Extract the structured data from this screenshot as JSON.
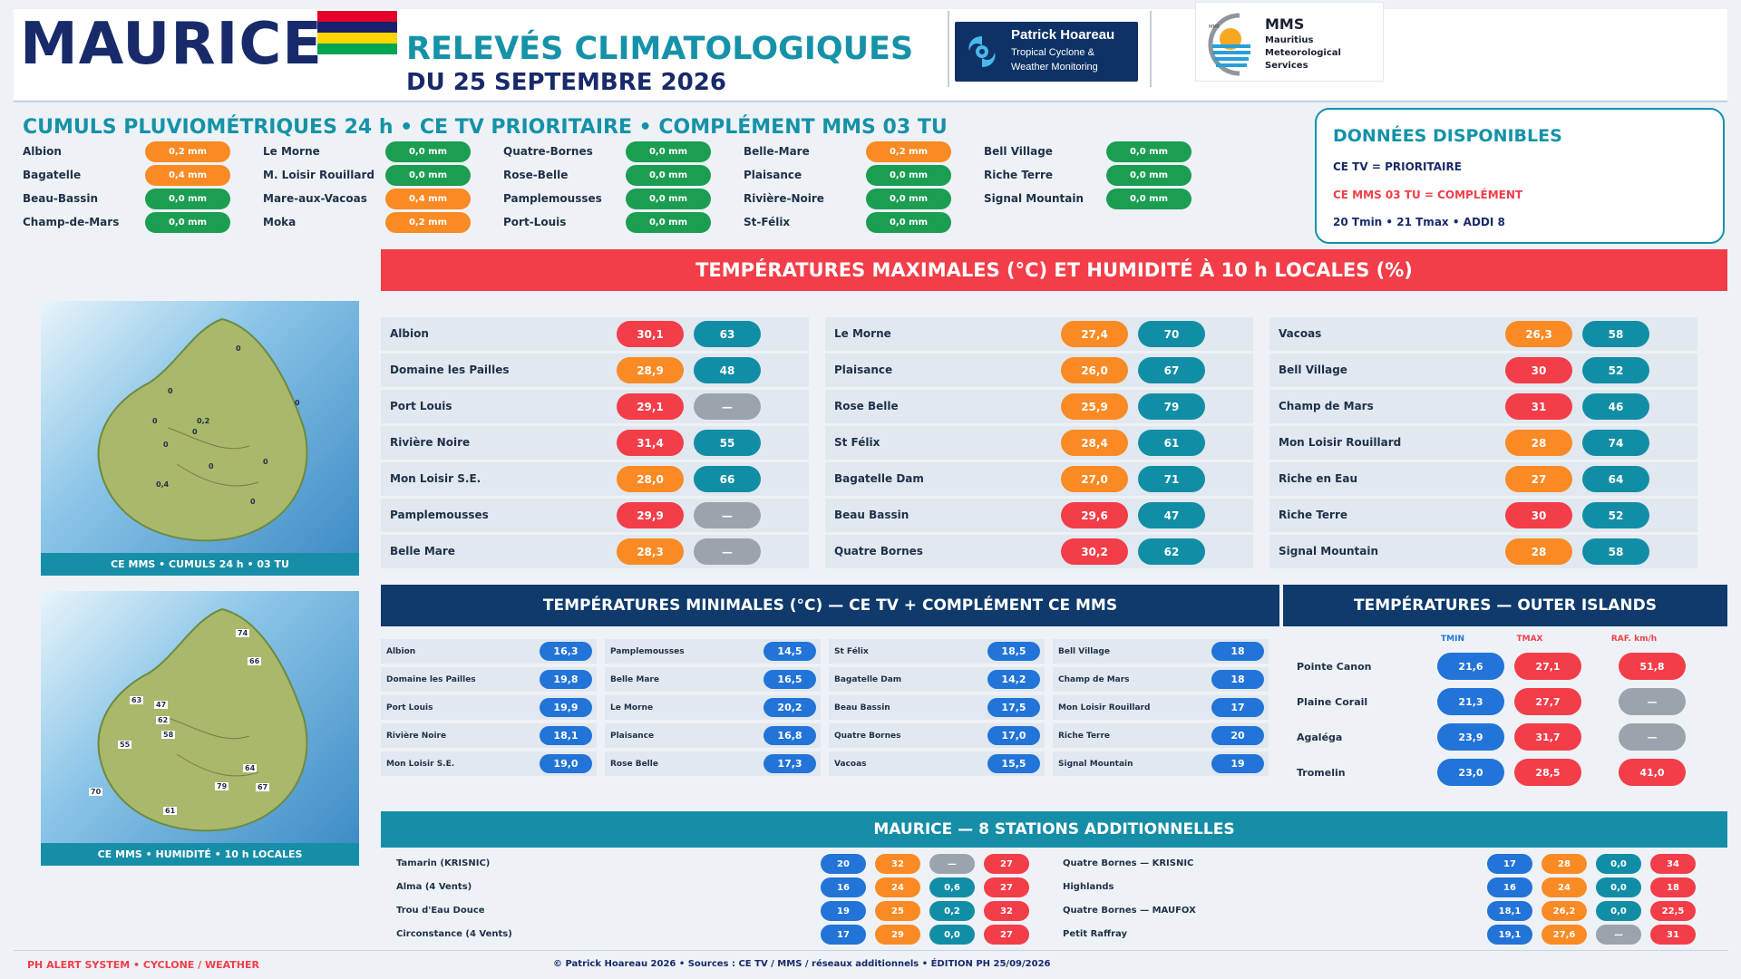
{
  "header": {
    "country": "MAURICE",
    "title_line1": "RELEVÉS CLIMATOLOGIQUES",
    "title_line2": "DU 25 SEPTEMBRE 2026",
    "ph_logo": {
      "name": "Patrick Hoareau",
      "line1": "Tropical Cyclone &",
      "line2": "Weather Monitoring"
    },
    "mms_logo": {
      "abbr": "MMS",
      "line1": "Mauritius",
      "line2": "Meteorological",
      "line3": "Services",
      "tiny": "MMS"
    }
  },
  "rain": {
    "title": "CUMULS PLUVIOMÉTRIQUES 24 h • CE TV PRIORITAIRE • COMPLÉMENT MMS 03 TU",
    "columns": [
      [
        {
          "name": "Albion",
          "value": "0,2 mm",
          "color": "org"
        },
        {
          "name": "Bagatelle",
          "value": "0,4 mm",
          "color": "org"
        },
        {
          "name": "Beau-Bassin",
          "value": "0,0 mm",
          "color": "grn"
        },
        {
          "name": "Champ-de-Mars",
          "value": "0,0 mm",
          "color": "grn"
        }
      ],
      [
        {
          "name": "Le Morne",
          "value": "0,0 mm",
          "color": "grn"
        },
        {
          "name": "M. Loisir Rouillard",
          "value": "0,0 mm",
          "color": "grn"
        },
        {
          "name": "Mare-aux-Vacoas",
          "value": "0,4 mm",
          "color": "org"
        },
        {
          "name": "Moka",
          "value": "0,2 mm",
          "color": "org"
        }
      ],
      [
        {
          "name": "Quatre-Bornes",
          "value": "0,0 mm",
          "color": "grn"
        },
        {
          "name": "Rose-Belle",
          "value": "0,0 mm",
          "color": "grn"
        },
        {
          "name": "Pamplemousses",
          "value": "0,0 mm",
          "color": "grn"
        },
        {
          "name": "Port-Louis",
          "value": "0,0 mm",
          "color": "grn"
        }
      ],
      [
        {
          "name": "Belle-Mare",
          "value": "0,2 mm",
          "color": "org"
        },
        {
          "name": "Plaisance",
          "value": "0,0 mm",
          "color": "grn"
        },
        {
          "name": "Rivière-Noire",
          "value": "0,0 mm",
          "color": "grn"
        },
        {
          "name": "St-Félix",
          "value": "0,0 mm",
          "color": "grn"
        }
      ],
      [
        {
          "name": "Bell Village",
          "value": "0,0 mm",
          "color": "grn"
        },
        {
          "name": "Riche Terre",
          "value": "0,0 mm",
          "color": "grn"
        },
        {
          "name": "Signal Mountain",
          "value": "0,0 mm",
          "color": "grn"
        }
      ]
    ]
  },
  "dispo": {
    "title": "DONNÉES DISPONIBLES",
    "line1": "CE TV = PRIORITAIRE",
    "line2": "CE MMS 03 TU = COMPLÉMENT",
    "line3": "20 Tmin • 21 Tmax • ADDI 8"
  },
  "maps": {
    "caption1": "CE MMS • CUMULS 24 h • 03 TU",
    "caption2": "CE MMS • HUMIDITÉ • 10 h LOCALES",
    "rain_labels": [
      "0",
      "0",
      "0",
      "0,2",
      "0",
      "0",
      "0,4",
      "0",
      "0",
      "0",
      "0"
    ],
    "hum_labels": [
      "74",
      "66",
      "63",
      "47",
      "62",
      "58",
      "55",
      "64",
      "79",
      "67",
      "70",
      "61"
    ]
  },
  "tmax": {
    "title": "TEMPÉRATURES MAXIMALES (°C) ET HUMIDITÉ À 10 h LOCALES (%)",
    "columns": [
      [
        {
          "name": "Albion",
          "t": "30,1",
          "tc": "red",
          "h": "63",
          "hc": "tea"
        },
        {
          "name": "Domaine les Pailles",
          "t": "28,9",
          "tc": "org",
          "h": "48",
          "hc": "tea"
        },
        {
          "name": "Port Louis",
          "t": "29,1",
          "tc": "red",
          "h": "—",
          "hc": "gry"
        },
        {
          "name": "Rivière Noire",
          "t": "31,4",
          "tc": "red",
          "h": "55",
          "hc": "tea"
        },
        {
          "name": "Mon Loisir S.E.",
          "t": "28,0",
          "tc": "org",
          "h": "66",
          "hc": "tea"
        },
        {
          "name": "Pamplemousses",
          "t": "29,9",
          "tc": "red",
          "h": "—",
          "hc": "gry"
        },
        {
          "name": "Belle Mare",
          "t": "28,3",
          "tc": "org",
          "h": "—",
          "hc": "gry"
        }
      ],
      [
        {
          "name": "Le Morne",
          "t": "27,4",
          "tc": "org",
          "h": "70",
          "hc": "tea"
        },
        {
          "name": "Plaisance",
          "t": "26,0",
          "tc": "org",
          "h": "67",
          "hc": "tea"
        },
        {
          "name": "Rose Belle",
          "t": "25,9",
          "tc": "org",
          "h": "79",
          "hc": "tea"
        },
        {
          "name": "St Félix",
          "t": "28,4",
          "tc": "org",
          "h": "61",
          "hc": "tea"
        },
        {
          "name": "Bagatelle Dam",
          "t": "27,0",
          "tc": "org",
          "h": "71",
          "hc": "tea"
        },
        {
          "name": "Beau Bassin",
          "t": "29,6",
          "tc": "red",
          "h": "47",
          "hc": "tea"
        },
        {
          "name": "Quatre Bornes",
          "t": "30,2",
          "tc": "red",
          "h": "62",
          "hc": "tea"
        }
      ],
      [
        {
          "name": "Vacoas",
          "t": "26,3",
          "tc": "org",
          "h": "58",
          "hc": "tea"
        },
        {
          "name": "Bell Village",
          "t": "30",
          "tc": "red",
          "h": "52",
          "hc": "tea"
        },
        {
          "name": "Champ de Mars",
          "t": "31",
          "tc": "red",
          "h": "46",
          "hc": "tea"
        },
        {
          "name": "Mon Loisir Rouillard",
          "t": "28",
          "tc": "org",
          "h": "74",
          "hc": "tea"
        },
        {
          "name": "Riche en Eau",
          "t": "27",
          "tc": "org",
          "h": "64",
          "hc": "tea"
        },
        {
          "name": "Riche Terre",
          "t": "30",
          "tc": "red",
          "h": "52",
          "hc": "tea"
        },
        {
          "name": "Signal Mountain",
          "t": "28",
          "tc": "org",
          "h": "58",
          "hc": "tea"
        }
      ]
    ]
  },
  "tmin": {
    "title": "TEMPÉRATURES MINIMALES (°C) — CE TV + COMPLÉMENT CE MMS",
    "columns": [
      [
        {
          "name": "Albion",
          "v": "16,3"
        },
        {
          "name": "Domaine les Pailles",
          "v": "19,8"
        },
        {
          "name": "Port Louis",
          "v": "19,9"
        },
        {
          "name": "Rivière Noire",
          "v": "18,1"
        },
        {
          "name": "Mon Loisir S.E.",
          "v": "19,0"
        }
      ],
      [
        {
          "name": "Pamplemousses",
          "v": "14,5"
        },
        {
          "name": "Belle Mare",
          "v": "16,5"
        },
        {
          "name": "Le Morne",
          "v": "20,2"
        },
        {
          "name": "Plaisance",
          "v": "16,8"
        },
        {
          "name": "Rose Belle",
          "v": "17,3"
        }
      ],
      [
        {
          "name": "St Félix",
          "v": "18,5"
        },
        {
          "name": "Bagatelle Dam",
          "v": "14,2"
        },
        {
          "name": "Beau Bassin",
          "v": "17,5"
        },
        {
          "name": "Quatre Bornes",
          "v": "17,0"
        },
        {
          "name": "Vacoas",
          "v": "15,5"
        }
      ],
      [
        {
          "name": "Bell Village",
          "v": "18"
        },
        {
          "name": "Champ de Mars",
          "v": "18"
        },
        {
          "name": "Mon Loisir Rouillard",
          "v": "17"
        },
        {
          "name": "Riche Terre",
          "v": "20"
        },
        {
          "name": "Signal Mountain",
          "v": "19"
        }
      ]
    ]
  },
  "outer": {
    "title": "TEMPÉRATURES — OUTER ISLANDS",
    "headers": [
      "TMIN",
      "TMAX",
      "RAF. km/h"
    ],
    "rows": [
      {
        "name": "Pointe Canon",
        "tmin": "21,6",
        "tmax": "27,1",
        "raf": "51,8",
        "rafc": "red"
      },
      {
        "name": "Plaine Corail",
        "tmin": "21,3",
        "tmax": "27,7",
        "raf": "—",
        "rafc": "gry"
      },
      {
        "name": "Agaléga",
        "tmin": "23,9",
        "tmax": "31,7",
        "raf": "—",
        "rafc": "gry"
      },
      {
        "name": "Tromelin",
        "tmin": "23,0",
        "tmax": "28,5",
        "raf": "41,0",
        "rafc": "red"
      }
    ]
  },
  "addi": {
    "title": "MAURICE — 8 STATIONS ADDITIONNELLES",
    "rows": [
      {
        "name": "Tamarin (KRISNIC)",
        "v": [
          [
            "20",
            "blu"
          ],
          [
            "32",
            "org"
          ],
          [
            "—",
            "gry"
          ],
          [
            "27",
            "red"
          ]
        ]
      },
      {
        "name": "Alma (4 Vents)",
        "v": [
          [
            "16",
            "blu"
          ],
          [
            "24",
            "org"
          ],
          [
            "0,6",
            "tea"
          ],
          [
            "27",
            "red"
          ]
        ]
      },
      {
        "name": "Trou d'Eau Douce",
        "v": [
          [
            "19",
            "blu"
          ],
          [
            "25",
            "org"
          ],
          [
            "0,2",
            "tea"
          ],
          [
            "32",
            "red"
          ]
        ]
      },
      {
        "name": "Circonstance (4 Vents)",
        "v": [
          [
            "17",
            "blu"
          ],
          [
            "29",
            "org"
          ],
          [
            "0,0",
            "tea"
          ],
          [
            "27",
            "red"
          ]
        ]
      },
      {
        "name": "Quatre Bornes — KRISNIC",
        "v": [
          [
            "17",
            "blu"
          ],
          [
            "28",
            "org"
          ],
          [
            "0,0",
            "tea"
          ],
          [
            "34",
            "red"
          ]
        ]
      },
      {
        "name": "Highlands",
        "v": [
          [
            "16",
            "blu"
          ],
          [
            "24",
            "org"
          ],
          [
            "0,0",
            "tea"
          ],
          [
            "18",
            "red"
          ]
        ]
      },
      {
        "name": "Quatre Bornes — MAUFOX",
        "v": [
          [
            "18,1",
            "blu"
          ],
          [
            "26,2",
            "org"
          ],
          [
            "0,0",
            "tea"
          ],
          [
            "22,5",
            "red"
          ]
        ]
      },
      {
        "name": "Petit Raffray",
        "v": [
          [
            "19,1",
            "blu"
          ],
          [
            "27,6",
            "org"
          ],
          [
            "—",
            "gry"
          ],
          [
            "31",
            "red"
          ]
        ]
      }
    ]
  },
  "footer": {
    "left": "PH ALERT SYSTEM • CYCLONE / WEATHER",
    "center": "© Patrick Hoareau 2026 • Sources : CE TV / MMS / réseaux additionnels • ÉDITION PH 25/09/2026"
  },
  "colors": {
    "red": "#f33d48",
    "orange": "#fa8a24",
    "green": "#1b9d52",
    "teal": "#118ea6",
    "blue": "#2274d8",
    "grey": "#9ba4ad",
    "navy": "#182a6a",
    "band_red": "#f33d48",
    "band_navy": "#0f3a6b",
    "band_teal": "#178ea8"
  },
  "flag_colors": [
    "#e4002b",
    "#1a206d",
    "#ffd500",
    "#00a551"
  ]
}
